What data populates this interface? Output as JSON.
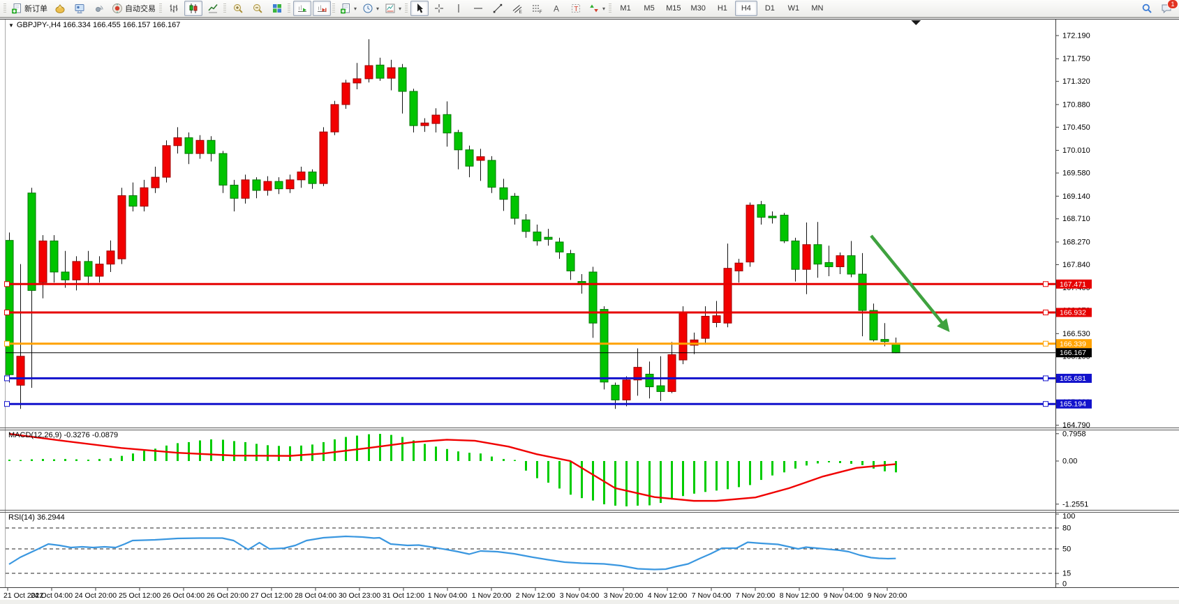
{
  "toolbar": {
    "groups": [
      {
        "name": "trade",
        "items": [
          {
            "name": "new-order-button",
            "icon": "new-order",
            "label": "新订单"
          },
          {
            "name": "market-watch-icon",
            "icon": "gold"
          },
          {
            "name": "data-window-icon",
            "icon": "monitor"
          },
          {
            "name": "navigator-icon",
            "icon": "signal"
          },
          {
            "name": "autotrading-button",
            "icon": "autotrade",
            "label": "自动交易"
          }
        ]
      },
      {
        "name": "chart-type",
        "items": [
          {
            "name": "bar-chart-button",
            "icon": "bars"
          },
          {
            "name": "candlestick-button",
            "icon": "candles",
            "pressed": true
          },
          {
            "name": "line-chart-button",
            "icon": "linechart"
          }
        ]
      },
      {
        "name": "zoom",
        "items": [
          {
            "name": "zoom-in-button",
            "icon": "zoomin"
          },
          {
            "name": "zoom-out-button",
            "icon": "zoomout"
          },
          {
            "name": "tile-windows-button",
            "icon": "tiles"
          }
        ]
      },
      {
        "name": "scroll",
        "items": [
          {
            "name": "auto-scroll-button",
            "icon": "autoscroll",
            "pressed": true
          },
          {
            "name": "chart-shift-button",
            "icon": "chartshift",
            "pressed": true
          }
        ]
      },
      {
        "name": "insert",
        "items": [
          {
            "name": "indicators-button",
            "icon": "new-order",
            "dropdown": true
          },
          {
            "name": "periods-button",
            "icon": "clock",
            "dropdown": true
          },
          {
            "name": "templates-button",
            "icon": "templates",
            "dropdown": true
          }
        ]
      },
      {
        "name": "draw",
        "items": [
          {
            "name": "cursor-button",
            "icon": "cursor",
            "pressed": true
          },
          {
            "name": "crosshair-button",
            "icon": "crosshair"
          },
          {
            "name": "vertical-line-button",
            "icon": "vline",
            "sep": true
          },
          {
            "name": "horizontal-line-button",
            "icon": "hline"
          },
          {
            "name": "trendline-button",
            "icon": "trend"
          },
          {
            "name": "channel-button",
            "icon": "channel"
          },
          {
            "name": "fibonacci-button",
            "icon": "fibo"
          },
          {
            "name": "text-button",
            "icon": "textA"
          },
          {
            "name": "text-label-button",
            "icon": "textT"
          },
          {
            "name": "arrows-button",
            "icon": "arrows",
            "dropdown": true
          }
        ]
      }
    ],
    "timeframes": {
      "items": [
        "M1",
        "M5",
        "M15",
        "M30",
        "H1",
        "H4",
        "D1",
        "W1",
        "MN"
      ],
      "active": "H4"
    },
    "right": {
      "search_icon": "search",
      "notification_icon": "chat",
      "notification_badge": "1"
    }
  },
  "chart": {
    "title": "GBPJPY-,H4 166.334 166.455 166.157 166.167",
    "symbol": "GBPJPY-",
    "timeframe": "H4",
    "y_axis_ticks": [
      "172.190",
      "171.750",
      "171.320",
      "170.880",
      "170.450",
      "170.010",
      "169.580",
      "169.140",
      "168.710",
      "168.270",
      "167.840",
      "167.400",
      "166.970",
      "166.530",
      "166.100",
      "165.660",
      "165.230",
      "164.790"
    ],
    "x_axis_labels": [
      "21 Oct 2022",
      "24 Oct 04:00",
      "24 Oct 20:00",
      "25 Oct 12:00",
      "26 Oct 04:00",
      "26 Oct 20:00",
      "27 Oct 12:00",
      "28 Oct 04:00",
      "30 Oct 23:00",
      "31 Oct 12:00",
      "1 Nov 04:00",
      "1 Nov 20:00",
      "2 Nov 12:00",
      "3 Nov 04:00",
      "3 Nov 20:00",
      "4 Nov 12:00",
      "7 Nov 04:00",
      "7 Nov 20:00",
      "8 Nov 12:00",
      "9 Nov 04:00",
      "9 Nov 20:00"
    ],
    "hlines": [
      {
        "price": 167.471,
        "label": "167.471",
        "color": "#e60000",
        "width": 3
      },
      {
        "price": 166.932,
        "label": "166.932",
        "color": "#e60000",
        "width": 3
      },
      {
        "price": 166.339,
        "label": "166.339",
        "color": "#ffa200",
        "width": 3
      },
      {
        "price": 165.681,
        "label": "165.681",
        "color": "#1212cc",
        "width": 3
      },
      {
        "price": 165.194,
        "label": "165.194",
        "color": "#1212cc",
        "width": 3
      }
    ],
    "current_price": {
      "price": 166.167,
      "label": "166.167",
      "color": "#000000"
    },
    "arrow": {
      "from_bar": 76.8,
      "from_price": 168.39,
      "to_bar": 83.8,
      "to_price": 166.56,
      "color": "#3fa23f"
    },
    "shift_marker_bar": 80.8,
    "colors": {
      "bull": "#f20000",
      "bull_border": "#9c0000",
      "bear": "#00c400",
      "bear_border": "#007700",
      "wick": "#111111",
      "rsi_line": "#3a97e0",
      "macd_signal": "#f00000",
      "macd_hist": "#00cc00"
    }
  },
  "chart_data": {
    "type": "candlestick+indicators",
    "symbol": "GBPJPY-",
    "timeframe": "H4",
    "ohlc_current": {
      "open": "166.334",
      "high": "166.455",
      "low": "166.157",
      "close": "166.167"
    },
    "price_range_visible": [
      164.75,
      172.49
    ],
    "candles": [
      [
        168.3,
        168.45,
        165.6,
        165.75
      ],
      [
        165.55,
        167.85,
        165.1,
        166.1
      ],
      [
        169.2,
        169.3,
        165.5,
        167.35
      ],
      [
        167.5,
        168.4,
        167.2,
        168.29
      ],
      [
        168.29,
        168.4,
        167.5,
        167.7
      ],
      [
        167.7,
        168.1,
        167.4,
        167.55
      ],
      [
        167.55,
        168.0,
        167.35,
        167.9
      ],
      [
        167.9,
        168.1,
        167.45,
        167.62
      ],
      [
        167.62,
        168.0,
        167.5,
        167.85
      ],
      [
        167.85,
        168.3,
        167.7,
        168.1
      ],
      [
        167.95,
        169.3,
        167.85,
        169.15
      ],
      [
        169.15,
        169.4,
        168.85,
        168.95
      ],
      [
        168.95,
        169.45,
        168.85,
        169.3
      ],
      [
        169.3,
        169.7,
        169.2,
        169.5
      ],
      [
        169.5,
        170.2,
        169.4,
        170.1
      ],
      [
        170.1,
        170.45,
        169.95,
        170.25
      ],
      [
        170.25,
        170.35,
        169.75,
        169.95
      ],
      [
        169.95,
        170.3,
        169.85,
        170.2
      ],
      [
        170.2,
        170.28,
        169.8,
        169.95
      ],
      [
        169.95,
        170.0,
        169.2,
        169.35
      ],
      [
        169.35,
        169.45,
        168.85,
        169.1
      ],
      [
        169.1,
        169.55,
        169.0,
        169.45
      ],
      [
        169.45,
        169.5,
        169.1,
        169.25
      ],
      [
        169.25,
        169.52,
        169.15,
        169.42
      ],
      [
        169.42,
        169.5,
        169.18,
        169.28
      ],
      [
        169.28,
        169.55,
        169.2,
        169.45
      ],
      [
        169.45,
        169.7,
        169.3,
        169.6
      ],
      [
        169.6,
        169.65,
        169.28,
        169.38
      ],
      [
        169.38,
        170.45,
        169.33,
        170.36
      ],
      [
        170.36,
        170.95,
        170.3,
        170.88
      ],
      [
        170.88,
        171.35,
        170.8,
        171.29
      ],
      [
        171.29,
        171.67,
        171.17,
        171.37
      ],
      [
        171.37,
        172.12,
        171.3,
        171.62
      ],
      [
        171.63,
        171.77,
        171.33,
        171.38
      ],
      [
        171.38,
        171.73,
        171.15,
        171.58
      ],
      [
        171.58,
        171.65,
        170.71,
        171.13
      ],
      [
        171.13,
        171.18,
        170.35,
        170.48
      ],
      [
        170.48,
        170.62,
        170.36,
        170.53
      ],
      [
        170.52,
        170.81,
        170.35,
        170.68
      ],
      [
        170.69,
        170.94,
        170.08,
        170.34
      ],
      [
        170.35,
        170.4,
        169.65,
        170.02
      ],
      [
        170.02,
        170.1,
        169.5,
        169.71
      ],
      [
        169.82,
        170.04,
        169.43,
        169.89
      ],
      [
        169.82,
        169.9,
        169.2,
        169.31
      ],
      [
        169.3,
        169.47,
        168.86,
        169.08
      ],
      [
        169.14,
        169.2,
        168.6,
        168.72
      ],
      [
        168.69,
        168.8,
        168.35,
        168.47
      ],
      [
        168.46,
        168.6,
        168.2,
        168.29
      ],
      [
        168.36,
        168.52,
        168.2,
        168.32
      ],
      [
        168.27,
        168.35,
        167.95,
        168.08
      ],
      [
        168.05,
        168.12,
        167.55,
        167.72
      ],
      [
        167.52,
        167.66,
        167.29,
        167.46
      ],
      [
        167.7,
        167.8,
        166.45,
        166.73
      ],
      [
        166.99,
        167.05,
        165.47,
        165.61
      ],
      [
        165.55,
        165.6,
        165.1,
        165.27
      ],
      [
        165.27,
        165.72,
        165.15,
        165.65
      ],
      [
        165.65,
        166.25,
        165.35,
        165.89
      ],
      [
        165.76,
        166.0,
        165.3,
        165.52
      ],
      [
        165.54,
        166.1,
        165.25,
        165.43
      ],
      [
        165.43,
        166.37,
        165.4,
        166.13
      ],
      [
        166.03,
        167.05,
        165.95,
        166.92
      ],
      [
        166.31,
        166.55,
        166.14,
        166.41
      ],
      [
        166.44,
        167.05,
        166.32,
        166.86
      ],
      [
        166.74,
        167.15,
        166.65,
        166.87
      ],
      [
        166.73,
        168.24,
        166.65,
        167.77
      ],
      [
        167.72,
        167.95,
        167.5,
        167.87
      ],
      [
        167.89,
        169.02,
        167.8,
        168.97
      ],
      [
        168.98,
        169.05,
        168.6,
        168.74
      ],
      [
        168.76,
        168.85,
        168.62,
        168.73
      ],
      [
        168.78,
        168.82,
        168.25,
        168.29
      ],
      [
        168.29,
        168.35,
        167.52,
        167.75
      ],
      [
        167.75,
        168.64,
        167.28,
        168.22
      ],
      [
        168.22,
        168.65,
        167.59,
        167.85
      ],
      [
        167.88,
        168.2,
        167.62,
        167.8
      ],
      [
        167.8,
        168.07,
        167.66,
        168.01
      ],
      [
        168.01,
        168.29,
        167.6,
        167.66
      ],
      [
        167.66,
        168.06,
        166.48,
        166.97
      ],
      [
        166.97,
        167.1,
        166.38,
        166.41
      ],
      [
        166.42,
        166.73,
        166.29,
        166.38
      ],
      [
        166.334,
        166.455,
        166.157,
        166.167
      ]
    ],
    "macd": {
      "label_text": "MACD(12,26,9) -0.3276 -0.0879",
      "params": "12,26,9",
      "value": -0.3276,
      "signal_value": -0.0879,
      "axis_labels": [
        "0.7958",
        "0.00",
        "-1.2551"
      ],
      "axis_values": [
        0.7958,
        0.0,
        -1.2551
      ],
      "histogram": [
        0.04,
        0.03,
        0.05,
        0.06,
        0.05,
        0.06,
        0.05,
        0.04,
        0.06,
        0.08,
        0.15,
        0.22,
        0.3,
        0.36,
        0.45,
        0.52,
        0.55,
        0.6,
        0.63,
        0.62,
        0.58,
        0.55,
        0.5,
        0.46,
        0.44,
        0.43,
        0.45,
        0.48,
        0.55,
        0.63,
        0.7,
        0.74,
        0.78,
        0.79,
        0.76,
        0.7,
        0.6,
        0.5,
        0.42,
        0.35,
        0.28,
        0.24,
        0.22,
        0.13,
        0.06,
        0.0,
        -0.28,
        -0.5,
        -0.63,
        -0.8,
        -0.98,
        -1.08,
        -1.15,
        -1.26,
        -1.3,
        -1.32,
        -1.3,
        -1.29,
        -1.22,
        -1.12,
        -1.02,
        -0.95,
        -0.9,
        -0.86,
        -0.82,
        -0.76,
        -0.7,
        -0.55,
        -0.42,
        -0.33,
        -0.22,
        -0.13,
        -0.07,
        -0.04,
        -0.06,
        -0.08,
        -0.12,
        -0.22,
        -0.3,
        -0.33
      ],
      "signal_points": [
        [
          0,
          0.79
        ],
        [
          5,
          0.58
        ],
        [
          10,
          0.38
        ],
        [
          15,
          0.24
        ],
        [
          20,
          0.16
        ],
        [
          25,
          0.15
        ],
        [
          28,
          0.22
        ],
        [
          32,
          0.38
        ],
        [
          36,
          0.55
        ],
        [
          39,
          0.62
        ],
        [
          41.5,
          0.59
        ],
        [
          44.5,
          0.42
        ],
        [
          47,
          0.2
        ],
        [
          50,
          0.0
        ],
        [
          54,
          -0.79
        ],
        [
          57.5,
          -1.05
        ],
        [
          61,
          -1.16
        ],
        [
          63,
          -1.16
        ],
        [
          66.5,
          -1.06
        ],
        [
          69.5,
          -0.79
        ],
        [
          72.5,
          -0.45
        ],
        [
          75.5,
          -0.2
        ],
        [
          79,
          -0.09
        ]
      ]
    },
    "rsi": {
      "label_text": "RSI(14) 36.2944",
      "period": 14,
      "value": 36.2944,
      "axis_labels": [
        "100",
        "80",
        "50",
        "15",
        "0"
      ],
      "level_lines": [
        80,
        50,
        15
      ],
      "points": [
        [
          0,
          28
        ],
        [
          1,
          38
        ],
        [
          2.6,
          50
        ],
        [
          3.5,
          57
        ],
        [
          4.5,
          55
        ],
        [
          5.5,
          52
        ],
        [
          6.5,
          53
        ],
        [
          7.5,
          52
        ],
        [
          8.5,
          53
        ],
        [
          9.5,
          52
        ],
        [
          10.3,
          57
        ],
        [
          11,
          62
        ],
        [
          13,
          63
        ],
        [
          15,
          65
        ],
        [
          17,
          65.5
        ],
        [
          19,
          65.5
        ],
        [
          20,
          62
        ],
        [
          21.3,
          49
        ],
        [
          22.3,
          59
        ],
        [
          23.2,
          50
        ],
        [
          24.5,
          51
        ],
        [
          25.5,
          55
        ],
        [
          26.5,
          62
        ],
        [
          28,
          66
        ],
        [
          30,
          68
        ],
        [
          31.5,
          67
        ],
        [
          32.5,
          65.5
        ],
        [
          33,
          66
        ],
        [
          34,
          57
        ],
        [
          35.5,
          55
        ],
        [
          36.5,
          55.5
        ],
        [
          37.5,
          53
        ],
        [
          39,
          49
        ],
        [
          40,
          46
        ],
        [
          41,
          42.5
        ],
        [
          42,
          47
        ],
        [
          43.5,
          46
        ],
        [
          45,
          43
        ],
        [
          46.5,
          38.5
        ],
        [
          48,
          34.5
        ],
        [
          49.5,
          31
        ],
        [
          51,
          29.5
        ],
        [
          53,
          28.5
        ],
        [
          54.5,
          26
        ],
        [
          56,
          21.5
        ],
        [
          57.5,
          20.5
        ],
        [
          58.5,
          21
        ],
        [
          59.5,
          25
        ],
        [
          60.5,
          28.5
        ],
        [
          61.5,
          36
        ],
        [
          62.5,
          43
        ],
        [
          63.5,
          51
        ],
        [
          64.8,
          51
        ],
        [
          65.8,
          59.5
        ],
        [
          67,
          58
        ],
        [
          68.5,
          56.5
        ],
        [
          69.5,
          53
        ],
        [
          70.3,
          50
        ],
        [
          71,
          52.5
        ],
        [
          72,
          51
        ],
        [
          73,
          49.5
        ],
        [
          74,
          48
        ],
        [
          74.8,
          46
        ],
        [
          75.8,
          41
        ],
        [
          76.8,
          37.5
        ],
        [
          77.5,
          36.5
        ],
        [
          78.3,
          36
        ],
        [
          79,
          36.3
        ]
      ]
    }
  }
}
